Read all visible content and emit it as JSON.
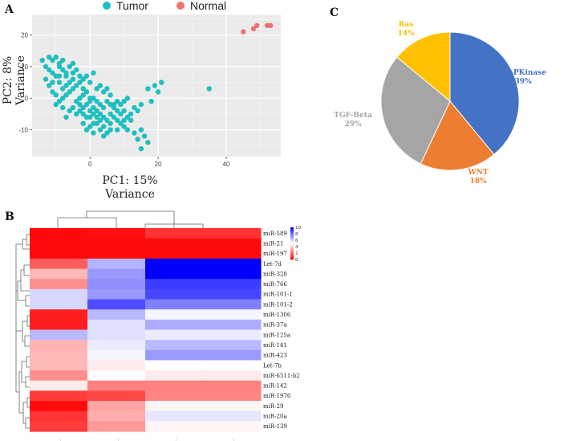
{
  "panel_labels": {
    "a": "A",
    "b": "B",
    "c": "C"
  },
  "chart_data": [
    {
      "panel": "A",
      "type": "scatter",
      "xlabel": "PC1: 15%",
      "xlabel2": "Variance",
      "ylabel": "PC2: 8%",
      "ylabel2": "Variance",
      "xlim": [
        -17,
        56
      ],
      "ylim": [
        -18.5,
        26.5
      ],
      "x_ticks": [
        0,
        20,
        40
      ],
      "y_ticks": [
        -10,
        0,
        10,
        20
      ],
      "grid": true,
      "legend_position": "top",
      "series": [
        {
          "name": "Tumor",
          "color": "#1fbfbf",
          "points": [
            [
              -14,
              12
            ],
            [
              -12,
              13
            ],
            [
              -11,
              12
            ],
            [
              -10,
              13
            ],
            [
              -9,
              11
            ],
            [
              -12,
              9
            ],
            [
              -13,
              10
            ],
            [
              -11,
              8
            ],
            [
              -10,
              7
            ],
            [
              -9,
              10
            ],
            [
              -8,
              12
            ],
            [
              -8,
              9
            ],
            [
              -7,
              8
            ],
            [
              -6,
              10
            ],
            [
              -5,
              11
            ],
            [
              -4,
              9
            ],
            [
              -5,
              6
            ],
            [
              -6,
              5
            ],
            [
              -7,
              4
            ],
            [
              -8,
              3
            ],
            [
              -9,
              5
            ],
            [
              -10,
              1
            ],
            [
              -11,
              2
            ],
            [
              -9,
              -1
            ],
            [
              -8,
              0
            ],
            [
              -7,
              1
            ],
            [
              -6,
              2
            ],
            [
              -5,
              3
            ],
            [
              -4,
              4
            ],
            [
              -3,
              5
            ],
            [
              -2,
              6
            ],
            [
              -1,
              7
            ],
            [
              0,
              5
            ],
            [
              1,
              8
            ],
            [
              2,
              3
            ],
            [
              3,
              4
            ],
            [
              4,
              2
            ],
            [
              5,
              3
            ],
            [
              6,
              1
            ],
            [
              -4,
              -1
            ],
            [
              -3,
              0
            ],
            [
              -2,
              1
            ],
            [
              -1,
              -2
            ],
            [
              0,
              -1
            ],
            [
              1,
              0
            ],
            [
              2,
              -1
            ],
            [
              3,
              -2
            ],
            [
              4,
              -3
            ],
            [
              5,
              -1
            ],
            [
              6,
              -2
            ],
            [
              7,
              -3
            ],
            [
              8,
              -4
            ],
            [
              9,
              -2
            ],
            [
              10,
              -1
            ],
            [
              11,
              0
            ],
            [
              12,
              -5
            ],
            [
              13,
              -3
            ],
            [
              14,
              -4
            ],
            [
              15,
              -2
            ],
            [
              -3,
              -4
            ],
            [
              -2,
              -5
            ],
            [
              -1,
              -6
            ],
            [
              0,
              -4
            ],
            [
              1,
              -3
            ],
            [
              2,
              -4
            ],
            [
              3,
              -5
            ],
            [
              4,
              -6
            ],
            [
              5,
              -7
            ],
            [
              6,
              -8
            ],
            [
              7,
              -6
            ],
            [
              8,
              -7
            ],
            [
              9,
              -8
            ],
            [
              10,
              -9
            ],
            [
              11,
              -10
            ],
            [
              12,
              -7
            ],
            [
              13,
              -11
            ],
            [
              14,
              -13
            ],
            [
              15,
              -10
            ],
            [
              16,
              -12
            ],
            [
              17,
              -14
            ],
            [
              15,
              -16
            ],
            [
              -1,
              -10
            ],
            [
              0,
              -9
            ],
            [
              1,
              -11
            ],
            [
              2,
              -8
            ],
            [
              3,
              -10
            ],
            [
              4,
              -12
            ],
            [
              5,
              -11
            ],
            [
              0,
              -6
            ],
            [
              1,
              -5
            ],
            [
              2,
              -6
            ],
            [
              3,
              -7
            ],
            [
              -2,
              -3
            ],
            [
              -3,
              -2
            ],
            [
              -4,
              -5
            ],
            [
              -5,
              -3
            ],
            [
              -6,
              -4
            ],
            [
              -7,
              -6
            ],
            [
              6,
              -5
            ],
            [
              7,
              -2
            ],
            [
              8,
              -1
            ],
            [
              9,
              -5
            ],
            [
              10,
              -4
            ],
            [
              11,
              -6
            ],
            [
              19,
              4
            ],
            [
              21,
              5
            ],
            [
              20,
              2
            ],
            [
              18,
              -1
            ],
            [
              17,
              3
            ],
            [
              35,
              3
            ],
            [
              -8,
              -3
            ],
            [
              -10,
              -2
            ],
            [
              -12,
              4
            ],
            [
              -13,
              6
            ],
            [
              -11,
              5
            ],
            [
              -9,
              7
            ],
            [
              -7,
              7
            ],
            [
              -5,
              8
            ],
            [
              -3,
              7
            ],
            [
              -2,
              3
            ],
            [
              -1,
              2
            ],
            [
              0,
              0
            ],
            [
              1,
              -8
            ],
            [
              -2,
              -8
            ],
            [
              4,
              -9
            ],
            [
              6,
              -10
            ],
            [
              8,
              -10
            ],
            [
              10,
              -7
            ]
          ]
        },
        {
          "name": "Normal",
          "color": "#f07070",
          "points": [
            [
              45,
              21
            ],
            [
              48,
              22
            ],
            [
              49,
              23
            ],
            [
              52,
              23
            ],
            [
              53,
              23
            ]
          ]
        }
      ]
    },
    {
      "panel": "B",
      "type": "heatmap",
      "row_labels": [
        "miR-589",
        "miR-21",
        "miR-197",
        "Let-7d",
        "miR-328",
        "miR-766",
        "miR-101-1",
        "miR-101-2",
        "miR-1306",
        "miR-37a",
        "miR-125a",
        "miR-141",
        "miR-423",
        "Let-7b",
        "miR-6511-b2",
        "miR-142",
        "miR-1976",
        "miR-29",
        "miR-20a",
        "miR-139"
      ],
      "column_labels": [
        "____",
        "____",
        "____",
        "____"
      ],
      "colorbar_ticks": [
        "10",
        "8",
        "6",
        "4",
        "2",
        "0"
      ],
      "values": [
        [
          0.2,
          0.3,
          1.0,
          1.0
        ],
        [
          0.2,
          0.2,
          0.2,
          0.2
        ],
        [
          0.2,
          0.2,
          0.2,
          0.2
        ],
        [
          1.8,
          6.5,
          10,
          10
        ],
        [
          3.6,
          7.0,
          10,
          10
        ],
        [
          2.8,
          7.2,
          8.8,
          8.8
        ],
        [
          5.8,
          7.0,
          8.6,
          8.6
        ],
        [
          5.8,
          8.5,
          7.5,
          7.5
        ],
        [
          0.6,
          6.4,
          5.2,
          5.2
        ],
        [
          0.6,
          5.6,
          6.6,
          6.6
        ],
        [
          6.4,
          5.6,
          5.4,
          5.4
        ],
        [
          3.5,
          5.4,
          6.4,
          6.4
        ],
        [
          3.6,
          5.2,
          7.0,
          7.0
        ],
        [
          3.6,
          4.6,
          5.0,
          5.0
        ],
        [
          2.8,
          5.0,
          4.6,
          4.6
        ],
        [
          4.6,
          2.5,
          2.5,
          2.5
        ],
        [
          1.2,
          1.4,
          2.6,
          2.6
        ],
        [
          0.2,
          3.2,
          4.8,
          4.8
        ],
        [
          1.0,
          3.4,
          5.5,
          5.5
        ],
        [
          1.2,
          3.0,
          4.8,
          4.8
        ]
      ]
    },
    {
      "panel": "C",
      "type": "pie",
      "slices": [
        {
          "name": "MAPKinase",
          "percent": 39,
          "color": "#4472c4",
          "label_color": "#4472c4"
        },
        {
          "name": "WNT",
          "percent": 18,
          "color": "#ed7d31",
          "label_color": "#ed7d31"
        },
        {
          "name": "TGF-Beta",
          "percent": 29,
          "color": "#a5a5a5",
          "label_color": "#a5a5a5"
        },
        {
          "name": "Ras",
          "percent": 14,
          "color": "#ffc000",
          "label_color": "#ffc000"
        }
      ]
    }
  ]
}
